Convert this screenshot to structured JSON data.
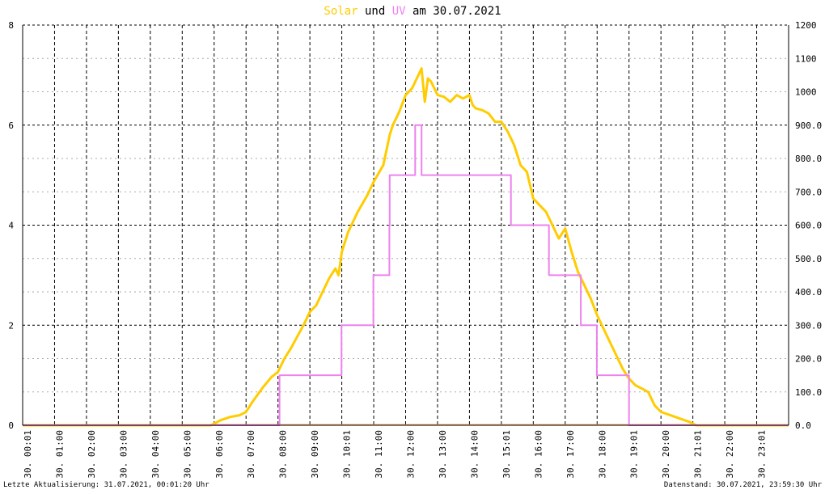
{
  "title": {
    "part1": "Solar",
    "part2": " und ",
    "part3": "UV",
    "part4": " am 30.07.2021"
  },
  "footer": {
    "left": "Letzte Aktualisierung: 31.07.2021, 00:01:20 Uhr",
    "right": "Datenstand: 30.07.2021, 23:59:30 Uhr"
  },
  "colors": {
    "solar": "#ffcc00",
    "uv": "#ee82ee",
    "overlap": "#f4a460",
    "grid": "#000000",
    "background": "#ffffff"
  },
  "chart_data": {
    "type": "line",
    "title": "Solar und UV am 30.07.2021",
    "xlabel": "",
    "ylabel_left": "",
    "ylabel_right": "",
    "x_unit": "hours",
    "xlim": [
      0,
      24
    ],
    "ylim_left": [
      0,
      8
    ],
    "ylim_right": [
      0,
      1200
    ],
    "y_ticks_left": [
      "0",
      "2",
      "4",
      "6",
      "8"
    ],
    "y_ticks_right": [
      "0.0",
      "100.0",
      "200.0",
      "300.0",
      "400.0",
      "500.0",
      "600.0",
      "700.0",
      "800.0",
      "900.0",
      "1000",
      "1100",
      "1200"
    ],
    "x_ticks": [
      "30. 00:01",
      "30. 01:00",
      "30. 02:00",
      "30. 03:00",
      "30. 04:00",
      "30. 05:00",
      "30. 06:00",
      "30. 07:00",
      "30. 08:00",
      "30. 09:00",
      "30. 10:01",
      "30. 11:00",
      "30. 12:00",
      "30. 13:00",
      "30. 14:00",
      "30. 15:01",
      "30. 16:00",
      "30. 17:00",
      "30. 18:00",
      "30. 19:01",
      "30. 20:00",
      "30. 21:01",
      "30. 22:00",
      "30. 23:01"
    ],
    "grid": true,
    "series": [
      {
        "name": "Solar",
        "axis": "right",
        "color": "#ffcc00",
        "x": [
          0,
          5.9,
          6.0,
          6.2,
          6.5,
          6.8,
          7.0,
          7.2,
          7.5,
          7.8,
          8.0,
          8.2,
          8.4,
          8.6,
          8.8,
          9.0,
          9.2,
          9.4,
          9.6,
          9.8,
          9.9,
          10.0,
          10.2,
          10.5,
          10.8,
          11.0,
          11.3,
          11.5,
          11.6,
          11.8,
          12.0,
          12.2,
          12.4,
          12.5,
          12.6,
          12.7,
          12.8,
          13.0,
          13.2,
          13.4,
          13.6,
          13.8,
          14.0,
          14.1,
          14.2,
          14.4,
          14.6,
          14.8,
          15.0,
          15.2,
          15.4,
          15.6,
          15.8,
          16.0,
          16.2,
          16.4,
          16.6,
          16.8,
          17.0,
          17.2,
          17.4,
          17.6,
          17.8,
          18.0,
          18.2,
          18.4,
          18.6,
          18.8,
          19.0,
          19.2,
          19.4,
          19.6,
          19.8,
          20.0,
          20.3,
          20.6,
          20.9,
          21.1,
          24.0
        ],
        "values": [
          0,
          0,
          5,
          15,
          25,
          30,
          40,
          70,
          110,
          145,
          160,
          200,
          230,
          265,
          300,
          340,
          360,
          400,
          440,
          470,
          450,
          520,
          580,
          640,
          690,
          730,
          780,
          870,
          900,
          940,
          990,
          1010,
          1050,
          1070,
          970,
          1040,
          1030,
          990,
          985,
          970,
          990,
          980,
          990,
          960,
          950,
          945,
          935,
          910,
          910,
          880,
          840,
          780,
          760,
          680,
          660,
          640,
          600,
          560,
          590,
          520,
          460,
          420,
          380,
          330,
          290,
          250,
          210,
          170,
          140,
          120,
          110,
          100,
          60,
          40,
          30,
          20,
          10,
          0,
          0
        ]
      },
      {
        "name": "UV",
        "axis": "left",
        "color": "#ee82ee",
        "x": [
          0,
          8.0,
          8.05,
          8.99,
          9.0,
          9.99,
          10.0,
          10.99,
          11.0,
          11.49,
          11.5,
          12.29,
          12.3,
          12.49,
          12.5,
          13.99,
          14.0,
          14.99,
          15.0,
          15.29,
          15.3,
          15.99,
          16.0,
          16.49,
          16.5,
          16.99,
          17.0,
          17.49,
          17.5,
          17.99,
          18.0,
          18.99,
          19.0,
          24.0
        ],
        "values": [
          0,
          0,
          1,
          1,
          1,
          2,
          2,
          3,
          3,
          4,
          5,
          5,
          6,
          6,
          5,
          5,
          5,
          5,
          5,
          5,
          4,
          4,
          4,
          3,
          3,
          3,
          3,
          2,
          2,
          1,
          1,
          1,
          0,
          0
        ]
      }
    ]
  }
}
